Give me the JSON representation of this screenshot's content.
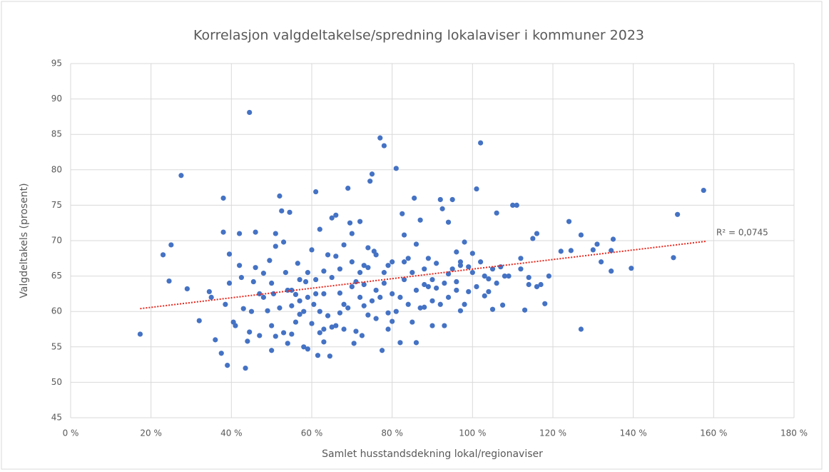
{
  "chart_data": {
    "type": "scatter",
    "title": "Korrelasjon valgdeltakelse/spredning lokalaviser i kommuner 2023",
    "x_label": "Samlet husstandsdekning  lokal/regionaviser",
    "y_label": "Valgdeltakels (prosent)",
    "color": "#4472c4",
    "xlim": [
      0,
      180
    ],
    "ylim": [
      45,
      95
    ],
    "xticks": [
      {
        "value": 0,
        "label": "0 %"
      },
      {
        "value": 20,
        "label": "20 %"
      },
      {
        "value": 40,
        "label": "40 %"
      },
      {
        "value": 60,
        "label": "60 %"
      },
      {
        "value": 80,
        "label": "80 %"
      },
      {
        "value": 100,
        "label": "100 %"
      },
      {
        "value": 120,
        "label": "120 %"
      },
      {
        "value": 140,
        "label": "140 %"
      },
      {
        "value": 160,
        "label": "160 %"
      },
      {
        "value": 180,
        "label": "180 %"
      }
    ],
    "yticks": [
      45,
      50,
      55,
      60,
      65,
      70,
      75,
      80,
      85,
      90,
      95
    ],
    "grid": true,
    "x": [
      17.3,
      23,
      24.5,
      25,
      27.5,
      29,
      32,
      34.5,
      35,
      36,
      37.5,
      38,
      38,
      38.5,
      39,
      39.5,
      39.5,
      40.5,
      41,
      42,
      42,
      42.5,
      43,
      43.5,
      44,
      44.5,
      44.5,
      45.5,
      46,
      46,
      47,
      48,
      49,
      49.5,
      50,
      50,
      50.5,
      51,
      51,
      52,
      52.5,
      53,
      53.5,
      54,
      54.5,
      55,
      56,
      56.5,
      57,
      58,
      58.5,
      59,
      60,
      60.5,
      61,
      61.5,
      62,
      63,
      64,
      64.5,
      65,
      66,
      67,
      68,
      69,
      69.5,
      70,
      70.5,
      71,
      72,
      72.5,
      73,
      74,
      74.5,
      75,
      75.5,
      76,
      77,
      77.5,
      78,
      79,
      80,
      81,
      82,
      82.5,
      83,
      84,
      85,
      85.5,
      86,
      87,
      88,
      89,
      90,
      91,
      92,
      92.5,
      93,
      94,
      95,
      96,
      97,
      98,
      99,
      100,
      101,
      102,
      103,
      104,
      105,
      106,
      107,
      107.5,
      108,
      110,
      111,
      112,
      113,
      114,
      115,
      116,
      117,
      118,
      122,
      124,
      124.5,
      127,
      127,
      130,
      131,
      132,
      134.5,
      134.5,
      135,
      139.5,
      150,
      151,
      157.5,
      55,
      57,
      59,
      62,
      63,
      65,
      66,
      67,
      68,
      70,
      72,
      73,
      75,
      76,
      78,
      79,
      80,
      81,
      83,
      84,
      86,
      87,
      88,
      89,
      90,
      91,
      93,
      94,
      95,
      96,
      97,
      98,
      100,
      101,
      102,
      103,
      104,
      105,
      48,
      50,
      52,
      53,
      54,
      56,
      58,
      60,
      61,
      62,
      64,
      65,
      67,
      69,
      71,
      73,
      74,
      76,
      77,
      79,
      82,
      85,
      88,
      92,
      96,
      99,
      45,
      47,
      51,
      55,
      57,
      59,
      63,
      66,
      68,
      70,
      72,
      74,
      78,
      80,
      83,
      86,
      90,
      94,
      97,
      106,
      109,
      112,
      114,
      116,
      119,
      63,
      61
    ],
    "values": [
      56.8,
      68,
      64.3,
      69.4,
      79.2,
      63.2,
      58.7,
      62.8,
      62,
      56,
      54.1,
      76,
      71.2,
      61,
      52.4,
      68.1,
      64,
      58.5,
      58,
      66.5,
      71,
      64.8,
      60.4,
      52,
      55.8,
      88.1,
      57.1,
      64.2,
      71.2,
      66.2,
      56.6,
      65.4,
      60.1,
      67.2,
      54.5,
      58,
      62.5,
      69.2,
      71,
      76.3,
      74.2,
      69.8,
      65.5,
      55.5,
      74,
      60.8,
      62.4,
      66.8,
      59.6,
      55,
      64.2,
      54.7,
      68.7,
      61,
      76.9,
      53.8,
      71.6,
      65.7,
      59.4,
      53.7,
      73.2,
      73.6,
      62.6,
      69.4,
      77.4,
      72.5,
      71,
      55.5,
      64.2,
      72.7,
      56.6,
      60.8,
      66.2,
      78.4,
      79.4,
      68.5,
      63,
      84.5,
      54.5,
      83.4,
      59.8,
      67,
      80.2,
      55.6,
      73.8,
      70.8,
      61,
      65.5,
      76,
      55.6,
      72.9,
      60.6,
      67.5,
      58,
      63.3,
      75.8,
      74.5,
      58,
      72.6,
      75.8,
      68.4,
      60.1,
      69.8,
      62.8,
      68.2,
      77.3,
      83.8,
      62.2,
      64.6,
      60.3,
      73.9,
      66.3,
      60.9,
      65,
      75,
      75,
      67.5,
      60.2,
      63.8,
      70.3,
      71,
      63.8,
      61.1,
      68.5,
      72.7,
      68.6,
      57.5,
      70.8,
      68.7,
      69.5,
      67,
      65.7,
      68.6,
      70.2,
      66.1,
      67.6,
      73.7,
      77.1,
      63,
      64.5,
      62,
      60,
      62.5,
      64.8,
      58,
      66,
      57.5,
      63.5,
      62,
      66.5,
      61.5,
      59,
      64,
      66.5,
      62.5,
      60,
      64.5,
      67.5,
      63,
      60.5,
      66,
      63.5,
      61.5,
      66.8,
      64,
      62,
      66,
      63,
      66.5,
      61,
      65.5,
      63.5,
      67,
      65,
      62.8,
      66,
      62,
      64,
      60.5,
      57,
      63,
      58.5,
      60,
      58.3,
      64.5,
      57,
      68,
      57.8,
      59.8,
      60.5,
      57.2,
      63.8,
      59.5,
      68,
      62,
      57.5,
      62,
      58.5,
      63.8,
      61,
      64.2,
      66.3,
      60,
      62.5,
      56.5,
      56.8,
      61.5,
      65.5,
      55.7,
      67.8,
      61,
      67,
      65.5,
      69,
      65.5,
      58.6,
      67,
      69.5,
      64.5,
      65.3,
      67,
      64,
      65,
      66,
      64.8,
      63.5,
      65,
      57.5,
      62.5
    ],
    "trendline": {
      "x": [
        17.3,
        158
      ],
      "y": [
        60.4,
        69.9
      ],
      "color": "#e8281e",
      "label": "R² = 0,0745"
    }
  }
}
